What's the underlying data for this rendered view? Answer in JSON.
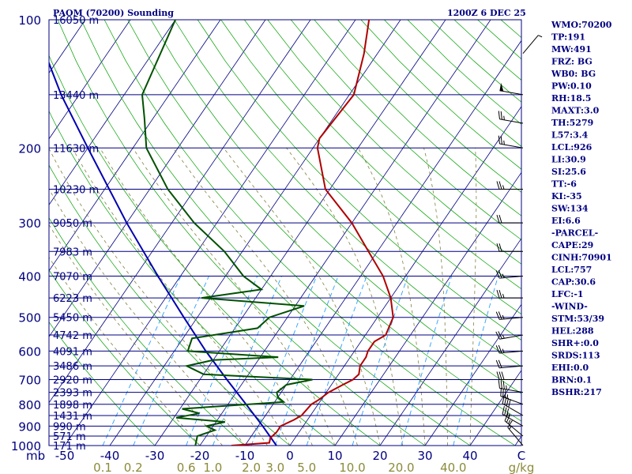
{
  "header": {
    "station": "PAOM (70200) Sounding",
    "time": "1200Z  6 DEC 25"
  },
  "chart_data": {
    "type": "line",
    "title": "PAOM (70200) Sounding",
    "pressure_axis_label": "mb",
    "temperature_axis_label": "C",
    "mixing_ratio_axis_label": "g/kg",
    "pressure_ticks": [
      {
        "p": 100,
        "label": "100"
      },
      {
        "p": 200,
        "label": "200"
      },
      {
        "p": 300,
        "label": "300"
      },
      {
        "p": 400,
        "label": "400"
      },
      {
        "p": 500,
        "label": "500"
      },
      {
        "p": 600,
        "label": "600"
      },
      {
        "p": 700,
        "label": "700"
      },
      {
        "p": 800,
        "label": "800"
      },
      {
        "p": 900,
        "label": "900"
      },
      {
        "p": 1000,
        "label": "1000"
      }
    ],
    "height_labels": [
      {
        "p": 100,
        "label": "16050 m"
      },
      {
        "p": 150,
        "label": "13440 m"
      },
      {
        "p": 200,
        "label": "11630 m"
      },
      {
        "p": 250,
        "label": "10230 m"
      },
      {
        "p": 300,
        "label": "9050 m"
      },
      {
        "p": 350,
        "label": "7983 m"
      },
      {
        "p": 400,
        "label": "7070 m"
      },
      {
        "p": 450,
        "label": "6223 m"
      },
      {
        "p": 500,
        "label": "5450 m"
      },
      {
        "p": 550,
        "label": "4742 m"
      },
      {
        "p": 600,
        "label": "4091 m"
      },
      {
        "p": 650,
        "label": "3486 m"
      },
      {
        "p": 700,
        "label": "2920 m"
      },
      {
        "p": 750,
        "label": "2393 m"
      },
      {
        "p": 800,
        "label": "1898 m"
      },
      {
        "p": 850,
        "label": "1431 m"
      },
      {
        "p": 900,
        "label": "990 m"
      },
      {
        "p": 950,
        "label": "571 m"
      },
      {
        "p": 1000,
        "label": "171 m"
      }
    ],
    "temperature_ticks": [
      {
        "t": -50,
        "label": "-50"
      },
      {
        "t": -40,
        "label": "-40"
      },
      {
        "t": -30,
        "label": "-30"
      },
      {
        "t": -20,
        "label": "-20"
      },
      {
        "t": -10,
        "label": "-10"
      },
      {
        "t": 0,
        "label": "0"
      },
      {
        "t": 10,
        "label": "10"
      },
      {
        "t": 20,
        "label": "20"
      },
      {
        "t": 30,
        "label": "30"
      },
      {
        "t": 40,
        "label": "40"
      }
    ],
    "mixing_ratio_ticks": [
      {
        "w": 0.1,
        "label": "0.1"
      },
      {
        "w": 0.2,
        "label": "0.2"
      },
      {
        "w": 0.6,
        "label": "0.6"
      },
      {
        "w": 1.0,
        "label": "1.0"
      },
      {
        "w": 2.0,
        "label": "2.0"
      },
      {
        "w": 3.0,
        "label": "3.0"
      },
      {
        "w": 5.0,
        "label": "5.0"
      },
      {
        "w": 10.0,
        "label": "10.0"
      },
      {
        "w": 20.0,
        "label": "20.0"
      },
      {
        "w": 40.0,
        "label": "40.0"
      }
    ],
    "temperature_profile": [
      {
        "p": 1000,
        "t": -13
      },
      {
        "p": 985,
        "t": -5
      },
      {
        "p": 960,
        "t": -5.5
      },
      {
        "p": 930,
        "t": -5
      },
      {
        "p": 900,
        "t": -5
      },
      {
        "p": 870,
        "t": -3
      },
      {
        "p": 850,
        "t": -2
      },
      {
        "p": 800,
        "t": -1.5
      },
      {
        "p": 780,
        "t": -0.5
      },
      {
        "p": 750,
        "t": 0.5
      },
      {
        "p": 720,
        "t": 2.5
      },
      {
        "p": 700,
        "t": 4
      },
      {
        "p": 680,
        "t": 4.5
      },
      {
        "p": 650,
        "t": 3.5
      },
      {
        "p": 620,
        "t": 3.5
      },
      {
        "p": 600,
        "t": 3
      },
      {
        "p": 570,
        "t": 3
      },
      {
        "p": 550,
        "t": 4.5
      },
      {
        "p": 500,
        "t": 3.5
      },
      {
        "p": 450,
        "t": 0
      },
      {
        "p": 400,
        "t": -5
      },
      {
        "p": 350,
        "t": -12
      },
      {
        "p": 300,
        "t": -20
      },
      {
        "p": 250,
        "t": -31
      },
      {
        "p": 200,
        "t": -39
      },
      {
        "p": 190,
        "t": -40
      },
      {
        "p": 150,
        "t": -39
      },
      {
        "p": 120,
        "t": -43
      },
      {
        "p": 100,
        "t": -47
      }
    ],
    "dewpoint_profile": [
      {
        "p": 1000,
        "t": -21
      },
      {
        "p": 950,
        "t": -22
      },
      {
        "p": 920,
        "t": -19
      },
      {
        "p": 900,
        "t": -21.5
      },
      {
        "p": 880,
        "t": -18
      },
      {
        "p": 860,
        "t": -29.5
      },
      {
        "p": 840,
        "t": -25
      },
      {
        "p": 820,
        "t": -29.5
      },
      {
        "p": 790,
        "t": -8
      },
      {
        "p": 770,
        "t": -10
      },
      {
        "p": 750,
        "t": -11
      },
      {
        "p": 720,
        "t": -10
      },
      {
        "p": 700,
        "t": -5
      },
      {
        "p": 680,
        "t": -30
      },
      {
        "p": 650,
        "t": -35
      },
      {
        "p": 630,
        "t": -30
      },
      {
        "p": 620,
        "t": -16
      },
      {
        "p": 600,
        "t": -37
      },
      {
        "p": 560,
        "t": -38
      },
      {
        "p": 530,
        "t": -25
      },
      {
        "p": 500,
        "t": -24
      },
      {
        "p": 470,
        "t": -18
      },
      {
        "p": 450,
        "t": -42
      },
      {
        "p": 430,
        "t": -30
      },
      {
        "p": 400,
        "t": -36
      },
      {
        "p": 350,
        "t": -44
      },
      {
        "p": 300,
        "t": -55
      },
      {
        "p": 250,
        "t": -66
      },
      {
        "p": 200,
        "t": -77
      },
      {
        "p": 170,
        "t": -82
      },
      {
        "p": 150,
        "t": -86
      },
      {
        "p": 100,
        "t": -90
      }
    ],
    "parcel_path": [
      {
        "p": 1000,
        "t": -3
      },
      {
        "p": 900,
        "t": -9
      },
      {
        "p": 800,
        "t": -16
      },
      {
        "p": 700,
        "t": -24
      },
      {
        "p": 600,
        "t": -33
      },
      {
        "p": 500,
        "t": -43
      },
      {
        "p": 400,
        "t": -55
      },
      {
        "p": 300,
        "t": -70
      },
      {
        "p": 200,
        "t": -90
      },
      {
        "p": 150,
        "t": -104
      },
      {
        "p": 125,
        "t": -112
      }
    ],
    "winds": [
      {
        "p": 120,
        "dir": 40,
        "spd": 5
      },
      {
        "p": 150,
        "dir": 280,
        "spd": 50
      },
      {
        "p": 175,
        "dir": 280,
        "spd": 25
      },
      {
        "p": 200,
        "dir": 280,
        "spd": 25
      },
      {
        "p": 250,
        "dir": 270,
        "spd": 25
      },
      {
        "p": 300,
        "dir": 270,
        "spd": 20
      },
      {
        "p": 350,
        "dir": 270,
        "spd": 20
      },
      {
        "p": 400,
        "dir": 265,
        "spd": 25
      },
      {
        "p": 450,
        "dir": 270,
        "spd": 25
      },
      {
        "p": 500,
        "dir": 265,
        "spd": 25
      },
      {
        "p": 550,
        "dir": 260,
        "spd": 25
      },
      {
        "p": 600,
        "dir": 265,
        "spd": 25
      },
      {
        "p": 650,
        "dir": 265,
        "spd": 20
      },
      {
        "p": 700,
        "dir": 270,
        "spd": 30
      },
      {
        "p": 750,
        "dir": 280,
        "spd": 35
      },
      {
        "p": 800,
        "dir": 290,
        "spd": 35
      },
      {
        "p": 850,
        "dir": 300,
        "spd": 40
      },
      {
        "p": 900,
        "dir": 300,
        "spd": 35
      },
      {
        "p": 950,
        "dir": 310,
        "spd": 25
      },
      {
        "p": 1000,
        "dir": 320,
        "spd": 15
      }
    ],
    "indices": [
      "WMO:70200",
      "TP:191",
      "MW:491",
      "FRZ: BG",
      "WB0: BG",
      "PW:0.10",
      "RH:18.5",
      "MAXT:3.0",
      "TH:5279",
      "L57:3.4",
      "LCL:926",
      "LI:30.9",
      "SI:25.6",
      "TT:-6",
      "KI:-35",
      "SW:134",
      "EI:6.6",
      "-PARCEL-",
      "CAPE:29",
      "CINH:70901",
      "LCL:757",
      "CAP:30.6",
      "LFC:-1",
      "-WIND-",
      "STM:53/39",
      "HEL:288",
      "SHR+:0.0",
      "SRDS:113",
      "EHI:0.0",
      "BRN:0.1",
      "BSHR:217"
    ],
    "colors": {
      "isobar": "#000080",
      "isotherm": "#000080",
      "dry_adiabat": "#00a000",
      "moist_adiabat": "#808040",
      "mixing_ratio": "#2aa0ff",
      "temperature": "#b00000",
      "dewpoint": "#005000",
      "parcel": "#0000b0",
      "wind": "#000000",
      "text": "#000080",
      "mixing_ratio_text": "#8b8b3a"
    },
    "ylim": [
      1000,
      100
    ],
    "xlim": [
      -50,
      50
    ],
    "grid": true
  }
}
